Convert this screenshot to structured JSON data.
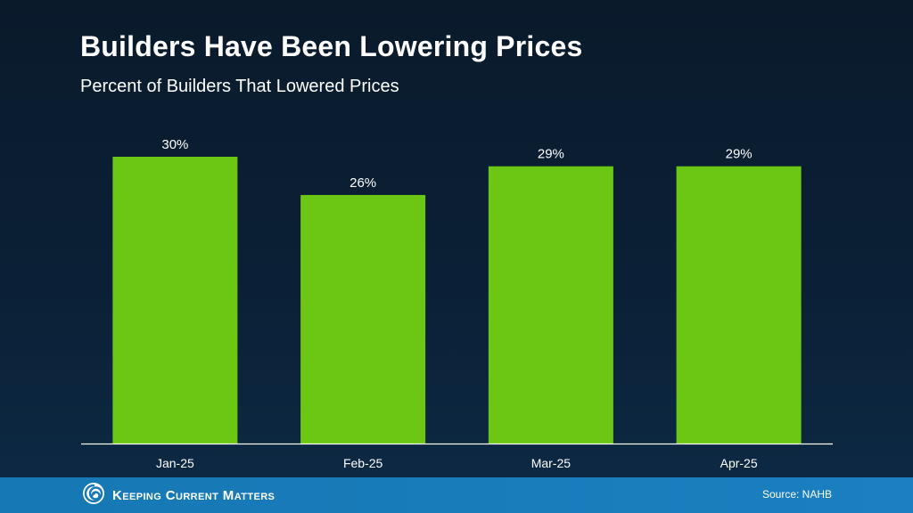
{
  "header": {
    "title": "Builders Have Been Lowering Prices",
    "subtitle": "Percent of Builders That Lowered Prices"
  },
  "footer": {
    "brand": "Keeping Current Matters",
    "source": "Source: NAHB",
    "logo_icon": "swirl-logo-icon"
  },
  "colors": {
    "bar": "#6cc714",
    "background": "#0b2036",
    "footer": "#1779b8",
    "text": "#ffffff"
  },
  "chart_data": {
    "type": "bar",
    "categories": [
      "Jan-25",
      "Feb-25",
      "Mar-25",
      "Apr-25"
    ],
    "values": [
      30,
      26,
      29,
      29
    ],
    "data_labels": [
      "30%",
      "26%",
      "29%",
      "29%"
    ],
    "title": "Builders Have Been Lowering Prices",
    "subtitle": "Percent of Builders That Lowered Prices",
    "xlabel": "",
    "ylabel": "",
    "ylim": [
      0,
      30
    ],
    "grid": false,
    "legend": "none",
    "value_axis_visible": false
  }
}
